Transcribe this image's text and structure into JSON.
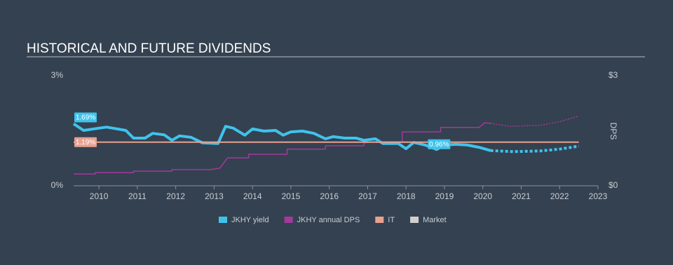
{
  "chart_data": {
    "type": "line",
    "title": "HISTORICAL AND FUTURE DIVIDENDS",
    "y2label": "DPS",
    "xlim": [
      2009.34,
      2023
    ],
    "xticks": [
      2010,
      2011,
      2012,
      2013,
      2014,
      2015,
      2016,
      2017,
      2018,
      2019,
      2020,
      2021,
      2022,
      2023
    ],
    "ylim": [
      0,
      3
    ],
    "yticks": [
      {
        "value": 0,
        "label": "0%"
      },
      {
        "value": 3,
        "label": "3%"
      }
    ],
    "y2lim": [
      0,
      3
    ],
    "y2ticks": [
      {
        "value": 0,
        "label": "$0"
      },
      {
        "value": 3,
        "label": "$3"
      }
    ],
    "series": [
      {
        "name": "JKHY yield",
        "color": "#3fc3ec",
        "width": 4,
        "x": [
          2009.34,
          2009.6,
          2010.0,
          2010.2,
          2010.7,
          2010.9,
          2011.2,
          2011.4,
          2011.7,
          2011.9,
          2012.1,
          2012.4,
          2012.7,
          2013.1,
          2013.3,
          2013.5,
          2013.8,
          2014.0,
          2014.3,
          2014.6,
          2014.8,
          2015.0,
          2015.3,
          2015.6,
          2015.9,
          2016.1,
          2016.4,
          2016.7,
          2016.9,
          2017.2,
          2017.4,
          2017.8,
          2018.0,
          2018.2,
          2018.5,
          2018.8,
          2019.0,
          2019.3,
          2019.6,
          2019.9,
          2020.1,
          2020.2
        ],
        "values": [
          1.69,
          1.51,
          1.57,
          1.6,
          1.51,
          1.3,
          1.3,
          1.43,
          1.39,
          1.24,
          1.36,
          1.32,
          1.17,
          1.15,
          1.62,
          1.57,
          1.38,
          1.55,
          1.49,
          1.51,
          1.38,
          1.47,
          1.49,
          1.43,
          1.28,
          1.34,
          1.3,
          1.3,
          1.24,
          1.28,
          1.15,
          1.15,
          1.01,
          1.18,
          1.11,
          0.99,
          1.11,
          1.13,
          1.11,
          1.05,
          0.99,
          0.96
        ],
        "forecast": {
          "x": [
            2020.2,
            2020.8,
            2021.5,
            2022.0,
            2022.5
          ],
          "values": [
            0.96,
            0.93,
            0.95,
            1.0,
            1.08
          ]
        }
      },
      {
        "name": "JKHY annual DPS",
        "color": "#a3399b",
        "width": 1.5,
        "axis": "y2",
        "x": [
          2009.34,
          2009.9,
          2009.9,
          2010.9,
          2010.9,
          2011.9,
          2011.9,
          2012.9,
          2013.15,
          2013.35,
          2013.9,
          2013.9,
          2014.9,
          2014.9,
          2015.9,
          2015.9,
          2016.9,
          2016.9,
          2017.15,
          2017.9,
          2017.9,
          2018.9,
          2018.9,
          2019.9,
          2020.05,
          2020.2
        ],
        "values": [
          0.32,
          0.32,
          0.36,
          0.36,
          0.4,
          0.4,
          0.44,
          0.44,
          0.48,
          0.76,
          0.76,
          0.86,
          0.86,
          1.0,
          1.0,
          1.09,
          1.09,
          1.17,
          1.2,
          1.2,
          1.47,
          1.47,
          1.59,
          1.59,
          1.72,
          1.7
        ],
        "forecast": {
          "x": [
            2020.2,
            2020.7,
            2021.5,
            2022.0,
            2022.5
          ],
          "values": [
            1.7,
            1.62,
            1.65,
            1.75,
            1.9
          ]
        }
      },
      {
        "name": "IT",
        "color": "#e8a190",
        "width": 2,
        "x": [
          2009.34,
          2022.5
        ],
        "values": [
          1.19,
          1.19
        ]
      },
      {
        "name": "Market",
        "color": "#cfcfcf"
      }
    ],
    "annotations": [
      {
        "x": 2009.34,
        "value": 1.69,
        "label": "1.69%",
        "color": "#3fc3ec"
      },
      {
        "x": 2009.34,
        "value": 1.19,
        "label": "1.19%",
        "color": "#e8a190"
      },
      {
        "x": 2018.55,
        "value": 0.96,
        "label": "0.96%",
        "color": "#3fc3ec"
      }
    ]
  }
}
